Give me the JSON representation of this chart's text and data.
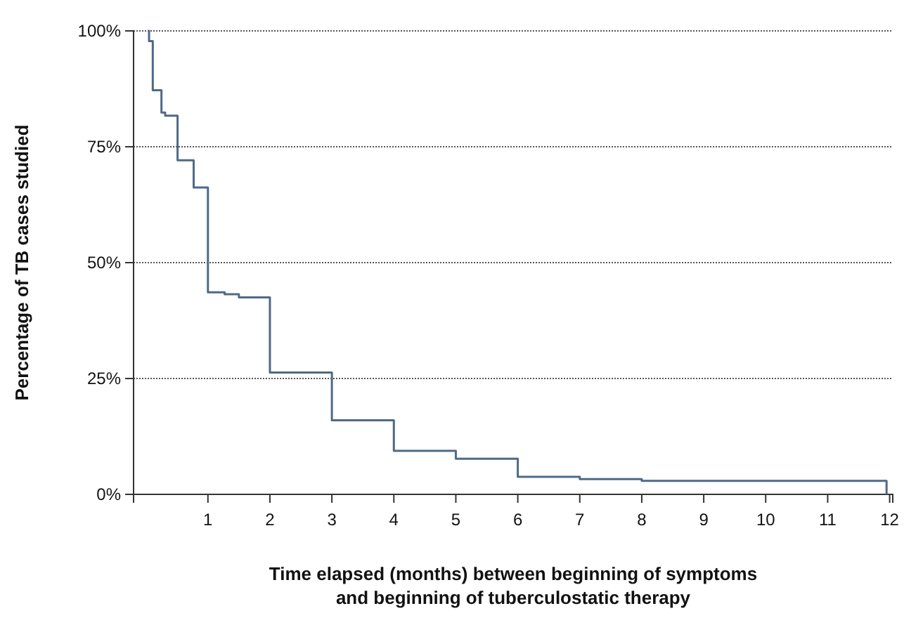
{
  "chart_data": {
    "type": "step",
    "xlabel": "Time elapsed (months) between beginning of symptoms\nand beginning of tuberculostatic therapy",
    "ylabel": "Percentage of TB cases studied",
    "x": [
      0.03,
      0.05,
      0.11,
      0.25,
      0.31,
      0.51,
      0.77,
      1.0,
      1.27,
      1.5,
      2,
      3,
      4,
      5,
      6,
      7,
      8,
      11.95
    ],
    "series": [
      {
        "color": "#4f6a85",
        "values": [
          100,
          97.8,
          87.2,
          82.4,
          81.7,
          72.1,
          66.2,
          43.6,
          43.2,
          42.5,
          26.3,
          16.0,
          9.4,
          7.7,
          3.8,
          3.3,
          2.9,
          0
        ]
      }
    ],
    "xlim": [
      -0.2,
      12.05
    ],
    "xticks": [
      1,
      2,
      3,
      4,
      5,
      6,
      7,
      8,
      9,
      10,
      11,
      12
    ],
    "ylim": [
      0,
      100
    ],
    "yticks": [
      {
        "value": 0,
        "label": "0%"
      },
      {
        "value": 25,
        "label": "25%"
      },
      {
        "value": 50,
        "label": "50%"
      },
      {
        "value": 75,
        "label": "75%"
      },
      {
        "value": 100,
        "label": "100%"
      }
    ],
    "grid": "y",
    "line_style": "solid"
  }
}
